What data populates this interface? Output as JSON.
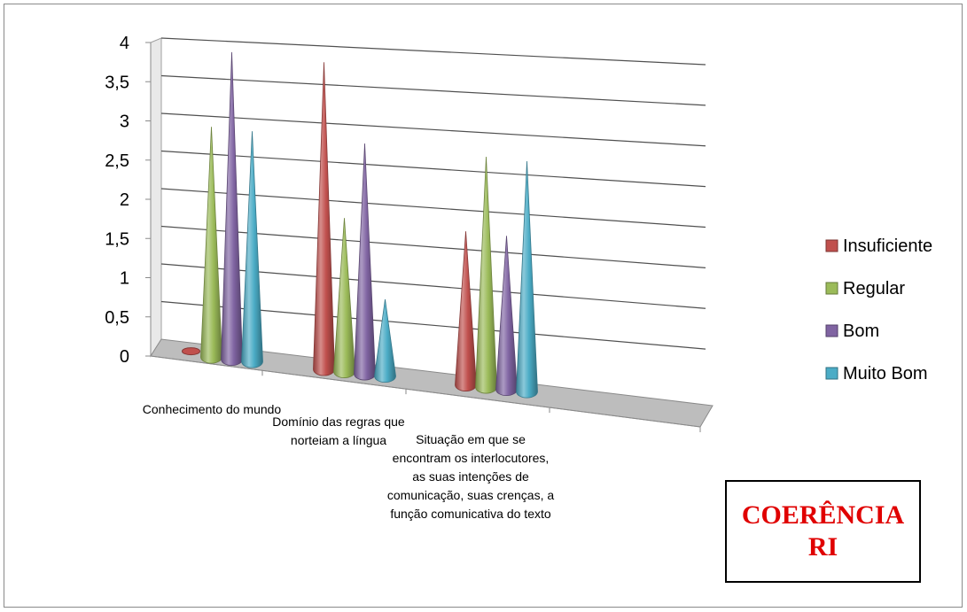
{
  "chart_data": {
    "type": "bar",
    "subtype": "3d-cone",
    "title": "",
    "xlabel": "",
    "ylabel": "",
    "ylim": [
      0,
      4
    ],
    "yticks": [
      "0",
      "0,5",
      "1",
      "1,5",
      "2",
      "2,5",
      "3",
      "3,5",
      "4"
    ],
    "grid": true,
    "legend_position": "right",
    "categories": [
      "Conhecimento do mundo",
      "Domínio das regras que norteiam a língua",
      "Situação em que se encontram os interlocutores, as suas intenções de comunicação, suas crenças, a função comunicativa do texto"
    ],
    "series": [
      {
        "name": "Insuficiente",
        "color": "#c0504d",
        "values": [
          0,
          4,
          2
        ]
      },
      {
        "name": "Regular",
        "color": "#9bbb59",
        "values": [
          3,
          2,
          3
        ]
      },
      {
        "name": "Bom",
        "color": "#8064a2",
        "values": [
          4,
          3,
          2
        ]
      },
      {
        "name": "Muito Bom",
        "color": "#4bacc6",
        "values": [
          3,
          1,
          3
        ]
      }
    ]
  },
  "annotation": {
    "line1": "COERÊNCIA",
    "line2": "RI"
  }
}
